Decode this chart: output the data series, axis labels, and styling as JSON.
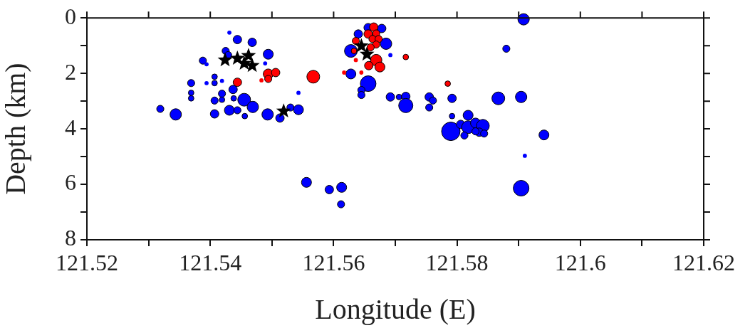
{
  "chart_data": {
    "type": "bubble",
    "xlabel": "Longitude (E)",
    "ylabel": "Depth (km)",
    "xlim": [
      121.52,
      121.62
    ],
    "ylim": [
      8,
      0
    ],
    "xticks": [
      121.52,
      {
        "value": 121.53,
        "label": null
      },
      121.54,
      {
        "value": 121.55,
        "label": null
      },
      121.56,
      {
        "value": 121.57,
        "label": null
      },
      121.58,
      {
        "value": 121.59,
        "label": null
      },
      121.6,
      {
        "value": 121.61,
        "label": null
      },
      121.62
    ],
    "yticks": [
      0,
      {
        "value": 1,
        "label": null
      },
      2,
      {
        "value": 3,
        "label": null
      },
      4,
      {
        "value": 5,
        "label": null
      },
      6,
      {
        "value": 7,
        "label": null
      },
      8
    ],
    "grid": false,
    "legend": false,
    "series": [
      {
        "marker": "circle",
        "color": "#0000ff",
        "x": [
          121.5319,
          121.5344,
          121.5369,
          121.5369,
          121.5369,
          121.5388,
          121.5394,
          121.5407,
          121.5407,
          121.5394,
          121.5419,
          121.5407,
          121.5407,
          121.5419,
          121.5419,
          121.5431,
          121.5444,
          121.5468,
          121.5425,
          121.5429,
          121.5494,
          121.5489,
          121.5437,
          121.5438,
          121.5455,
          121.5469,
          121.5431,
          121.5444,
          121.5456,
          121.5493,
          121.5513,
          121.553,
          121.5543,
          121.5543,
          121.5656,
          121.5678,
          121.564,
          121.5685,
          121.5628,
          121.5692,
          121.5628,
          121.5656,
          121.5645,
          121.5645,
          121.5692,
          121.5706,
          121.5717,
          121.5717,
          121.5755,
          121.5761,
          121.5755,
          121.5792,
          121.5792,
          121.5818,
          121.579,
          121.5806,
          121.5818,
          121.5812,
          121.583,
          121.5842,
          121.5836,
          121.583,
          121.5844,
          121.5867,
          121.5904,
          121.5941,
          121.591,
          121.5904,
          121.5908,
          121.588,
          121.5556,
          121.5593,
          121.5613,
          121.5612
        ],
        "values": [
          3.28,
          3.48,
          2.35,
          2.7,
          2.9,
          1.54,
          1.67,
          2.12,
          2.35,
          2.35,
          2.27,
          2.98,
          3.46,
          2.73,
          2.95,
          0.53,
          0.78,
          0.88,
          1.19,
          1.34,
          1.31,
          1.64,
          2.58,
          2.9,
          2.95,
          3.21,
          3.33,
          3.33,
          3.54,
          3.48,
          3.61,
          3.23,
          3.31,
          2.7,
          0.35,
          0.38,
          0.58,
          0.93,
          1.19,
          1.34,
          2.02,
          2.37,
          2.6,
          2.78,
          2.85,
          2.85,
          2.83,
          3.16,
          2.85,
          2.98,
          3.23,
          2.9,
          3.54,
          3.51,
          4.09,
          3.84,
          3.94,
          4.24,
          3.79,
          3.89,
          4.12,
          4.09,
          4.17,
          2.9,
          2.85,
          4.22,
          4.97,
          6.14,
          0.05,
          1.11,
          5.93,
          6.19,
          6.11,
          6.72
        ],
        "sizes": [
          0.15,
          0.38,
          0.15,
          0.09,
          0.09,
          0.15,
          0.05,
          0.09,
          0.09,
          0.05,
          0.05,
          0.15,
          0.21,
          0.15,
          0.09,
          0.05,
          0.21,
          0.21,
          0.15,
          0.15,
          0.29,
          0.05,
          0.21,
          0.09,
          0.48,
          0.38,
          0.29,
          0.15,
          0.09,
          0.38,
          0.21,
          0.15,
          0.29,
          0.05,
          0.21,
          0.21,
          0.21,
          0.38,
          0.48,
          0.05,
          0.29,
          0.72,
          0.15,
          0.15,
          0.21,
          0.09,
          0.21,
          0.59,
          0.21,
          0.15,
          0.15,
          0.21,
          0.09,
          0.29,
          1,
          0.21,
          0.48,
          0.15,
          0.29,
          0.48,
          0.21,
          0.15,
          0.15,
          0.48,
          0.38,
          0.29,
          0.05,
          0.72,
          0.38,
          0.15,
          0.29,
          0.21,
          0.29,
          0.15
        ]
      },
      {
        "marker": "circle",
        "color": "#ff0000",
        "x": [
          121.5444,
          121.5494,
          121.5506,
          121.5494,
          121.5483,
          121.5567,
          121.5717,
          121.5785,
          121.5665,
          121.5656,
          121.5669,
          121.5663,
          121.5673,
          121.5669,
          121.5636,
          121.566,
          121.5633,
          121.5636,
          121.5669,
          121.5657,
          121.5675,
          121.5617,
          121.5645
        ],
        "values": [
          2.32,
          2.02,
          1.97,
          2.2,
          2.25,
          2.12,
          1.41,
          2.37,
          0.33,
          0.58,
          0.56,
          0.76,
          0.76,
          0.96,
          0.83,
          1.06,
          1.19,
          1.52,
          1.52,
          1.72,
          1.77,
          1.97,
          1.97
        ],
        "sizes": [
          0.21,
          0.29,
          0.21,
          0.15,
          0.05,
          0.48,
          0.09,
          0.09,
          0.21,
          0.21,
          0.15,
          0.15,
          0.15,
          0.15,
          0.15,
          0.15,
          0.09,
          0.05,
          0.38,
          0.21,
          0.29,
          0.05,
          0.05
        ]
      },
      {
        "type": "scatter",
        "marker": "star",
        "color": "#000000",
        "x": [
          121.5424,
          121.5444,
          121.5462,
          121.5468,
          121.5455,
          121.5519,
          121.5645,
          121.5654
        ],
        "values": [
          1.52,
          1.46,
          1.36,
          1.72,
          1.64,
          3.36,
          1.01,
          1.31
        ]
      }
    ]
  }
}
